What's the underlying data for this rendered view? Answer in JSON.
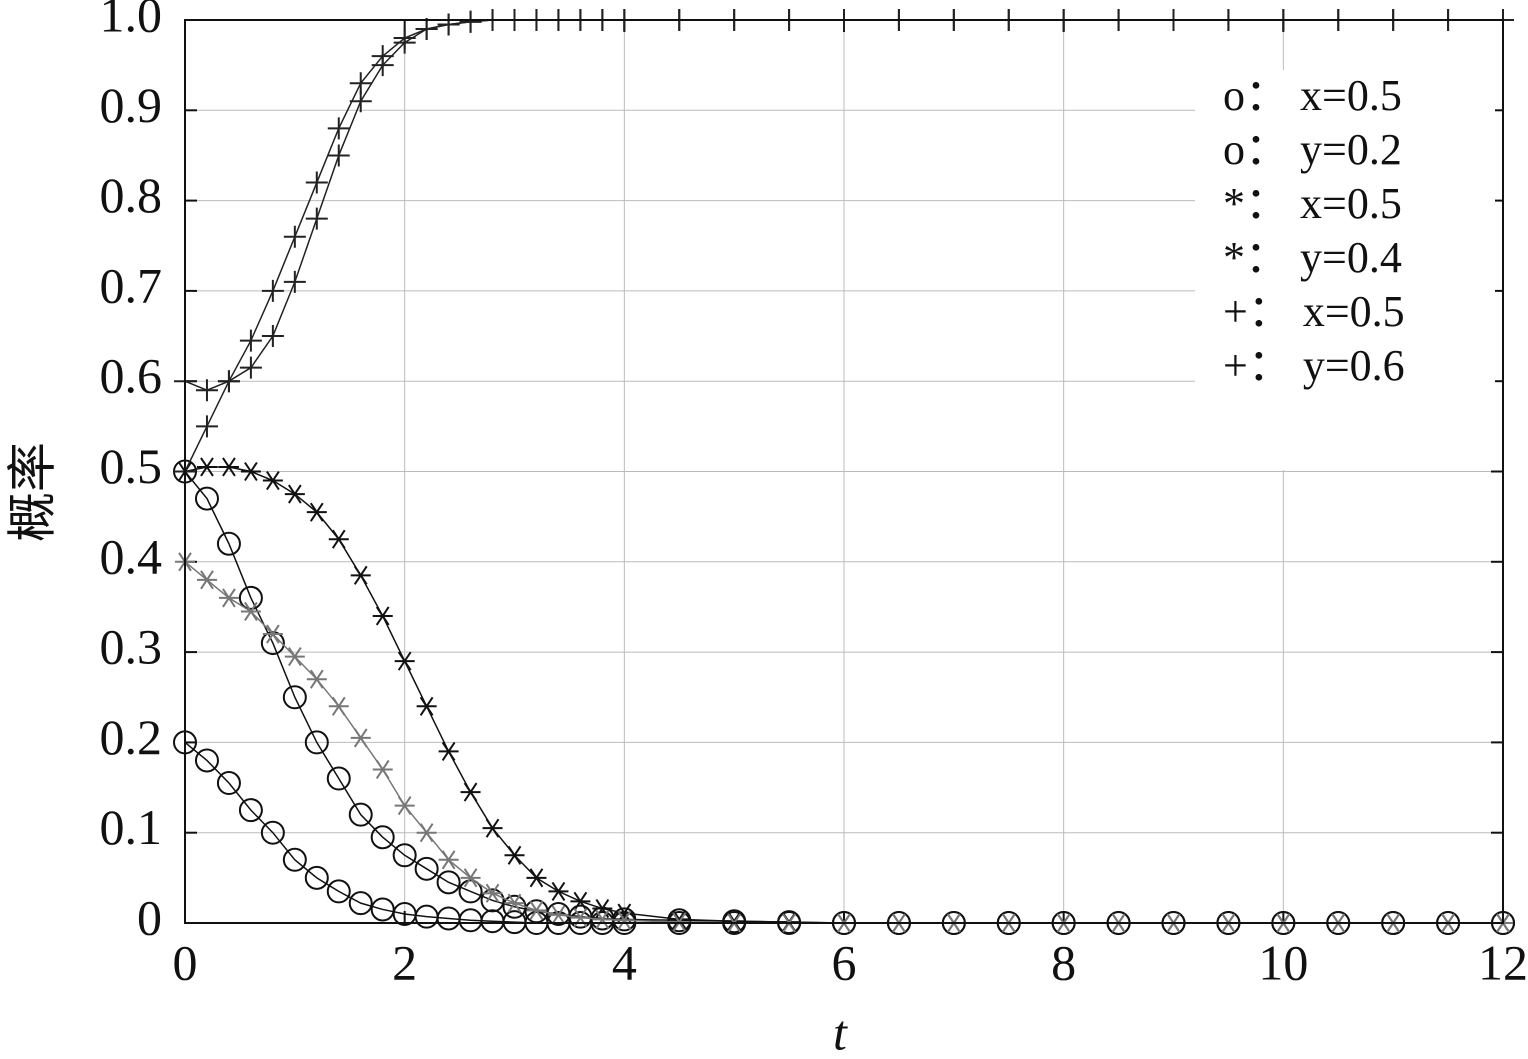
{
  "chart_data": {
    "type": "line",
    "xlabel": "t",
    "ylabel": "概率",
    "x": [
      0,
      0.2,
      0.4,
      0.6,
      0.8,
      1.0,
      1.2,
      1.4,
      1.6,
      1.8,
      2.0,
      2.2,
      2.4,
      2.6,
      2.8,
      3.0,
      3.2,
      3.4,
      3.6,
      3.8,
      4.0,
      4.5,
      5.0,
      5.5,
      6.0,
      6.5,
      7.0,
      7.5,
      8.0,
      8.5,
      9.0,
      9.5,
      10.0,
      10.5,
      11.0,
      11.5,
      12.0
    ],
    "series": [
      {
        "name": "o： x=0.5",
        "color": "#111111",
        "marker": "o",
        "values": [
          0.5,
          0.47,
          0.42,
          0.36,
          0.31,
          0.25,
          0.2,
          0.16,
          0.12,
          0.095,
          0.075,
          0.06,
          0.045,
          0.035,
          0.025,
          0.018,
          0.013,
          0.01,
          0.007,
          0.005,
          0.004,
          0.003,
          0.002,
          0.001,
          0,
          0,
          0,
          0,
          0,
          0,
          0,
          0,
          0,
          0,
          0,
          0,
          0
        ]
      },
      {
        "name": "o： y=0.2",
        "color": "#111111",
        "marker": "o",
        "values": [
          0.2,
          0.18,
          0.155,
          0.125,
          0.1,
          0.07,
          0.05,
          0.035,
          0.022,
          0.015,
          0.01,
          0.007,
          0.005,
          0.003,
          0.002,
          0.001,
          0,
          0,
          0,
          0,
          0,
          0,
          0,
          0,
          0,
          0,
          0,
          0,
          0,
          0,
          0,
          0,
          0,
          0,
          0,
          0,
          0
        ]
      },
      {
        "name": "*： x=0.5",
        "color": "#111111",
        "marker": "*",
        "values": [
          0.5,
          0.505,
          0.505,
          0.5,
          0.49,
          0.475,
          0.455,
          0.425,
          0.385,
          0.34,
          0.29,
          0.24,
          0.19,
          0.145,
          0.105,
          0.075,
          0.05,
          0.035,
          0.024,
          0.016,
          0.011,
          0.004,
          0.002,
          0.001,
          0,
          0,
          0,
          0,
          0,
          0,
          0,
          0,
          0,
          0,
          0,
          0,
          0
        ]
      },
      {
        "name": "*： y=0.4",
        "color": "#777777",
        "marker": "*",
        "values": [
          0.4,
          0.38,
          0.36,
          0.345,
          0.32,
          0.295,
          0.27,
          0.24,
          0.205,
          0.17,
          0.13,
          0.1,
          0.07,
          0.05,
          0.033,
          0.022,
          0.014,
          0.009,
          0.006,
          0.004,
          0.003,
          0.001,
          0,
          0,
          0,
          0,
          0,
          0,
          0,
          0,
          0,
          0,
          0,
          0,
          0,
          0,
          0
        ]
      },
      {
        "name": "+： x=0.5",
        "color": "#222222",
        "marker": "+",
        "values": [
          0.5,
          0.55,
          0.6,
          0.645,
          0.7,
          0.76,
          0.82,
          0.88,
          0.93,
          0.96,
          0.98,
          0.99,
          0.995,
          0.998,
          1,
          1,
          1,
          1,
          1,
          1,
          1,
          1,
          1,
          1,
          1,
          1,
          1,
          1,
          1,
          1,
          1,
          1,
          1,
          1,
          1,
          1,
          1
        ]
      },
      {
        "name": "+： y=0.6",
        "color": "#222222",
        "marker": "+",
        "values": [
          0.6,
          0.59,
          0.6,
          0.615,
          0.65,
          0.71,
          0.78,
          0.85,
          0.91,
          0.95,
          0.975,
          0.99,
          0.995,
          0.998,
          1,
          1,
          1,
          1,
          1,
          1,
          1,
          1,
          1,
          1,
          1,
          1,
          1,
          1,
          1,
          1,
          1,
          1,
          1,
          1,
          1,
          1,
          1
        ]
      }
    ],
    "xlim": [
      0,
      12
    ],
    "xticks": [
      0,
      2,
      4,
      6,
      8,
      10,
      12
    ],
    "ylim": [
      0,
      1
    ],
    "yticks": [
      0,
      0.1,
      0.2,
      0.3,
      0.4,
      0.5,
      0.6,
      0.7,
      0.8,
      0.9,
      {
        "value": 1,
        "label": "1.0"
      }
    ],
    "grid": true,
    "legend": "upper right"
  }
}
